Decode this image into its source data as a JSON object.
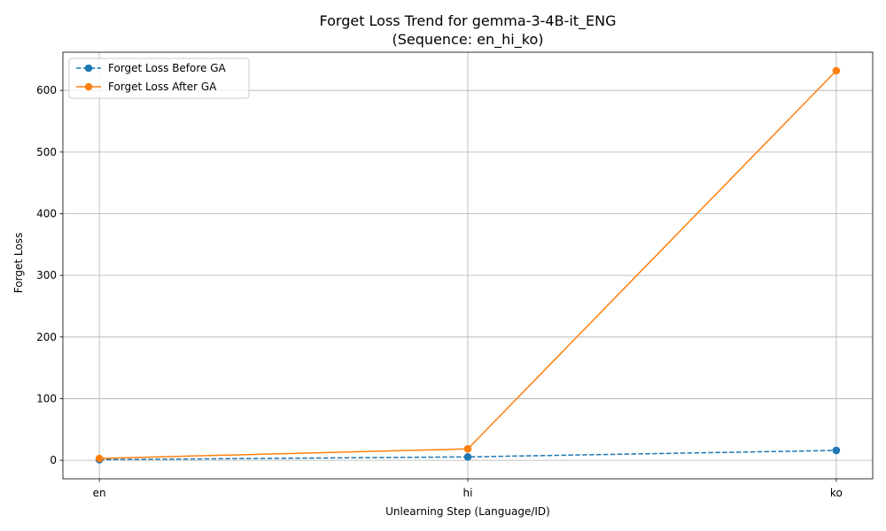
{
  "chart_data": {
    "type": "line",
    "title_line1": "Forget Loss Trend for gemma-3-4B-it_ENG",
    "title_line2": "(Sequence: en_hi_ko)",
    "xlabel": "Unlearning Step (Language/ID)",
    "ylabel": "Forget Loss",
    "categories": [
      "en",
      "hi",
      "ko"
    ],
    "ylim": [
      -30,
      662
    ],
    "yticks": [
      0,
      100,
      200,
      300,
      400,
      500,
      600
    ],
    "grid": true,
    "legend_position": "upper-left",
    "series": [
      {
        "name": "Forget Loss Before GA",
        "values": [
          1,
          5.5,
          16
        ],
        "color": "#1f77b4",
        "linestyle": "dashed",
        "marker": "circle"
      },
      {
        "name": "Forget Loss After GA",
        "values": [
          3,
          18.5,
          632
        ],
        "color": "#ff7f0e",
        "linestyle": "solid",
        "marker": "circle"
      }
    ]
  }
}
